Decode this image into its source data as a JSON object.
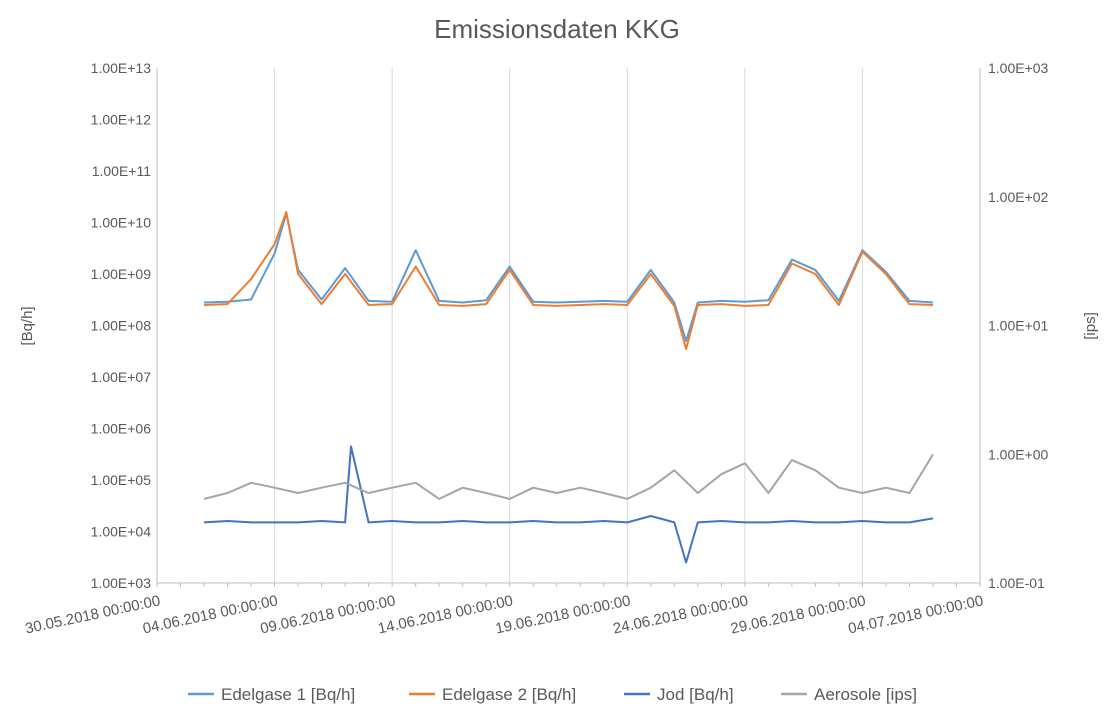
{
  "chart_data": {
    "type": "line",
    "title": "Emissionsdaten KKG",
    "ylabel": "[Bq/h]",
    "y2label": "[ips]",
    "y_scale": "log",
    "y2_scale": "log",
    "ylim": [
      1000,
      10000000000000
    ],
    "y2lim": [
      0.1,
      1000
    ],
    "yticks": [
      "1.00E+03",
      "1.00E+04",
      "1.00E+05",
      "1.00E+06",
      "1.00E+07",
      "1.00E+08",
      "1.00E+09",
      "1.00E+10",
      "1.00E+11",
      "1.00E+12",
      "1.00E+13"
    ],
    "y2ticks": [
      "1.00E-01",
      "1.00E+00",
      "1.00E+01",
      "1.00E+02",
      "1.00E+03"
    ],
    "xlim": [
      "2018-05-30 00:00",
      "2018-07-04 00:00"
    ],
    "xticks": [
      "30.05.2018 00:00:00",
      "04.06.2018 00:00:00",
      "09.06.2018 00:00:00",
      "14.06.2018 00:00:00",
      "19.06.2018 00:00:00",
      "24.06.2018 00:00:00",
      "29.06.2018 00:00:00",
      "04.07.2018 00:00:00"
    ],
    "grid": "vertical",
    "legend": "bottom",
    "colors": {
      "edelgase1": "#5b9bd5",
      "edelgase2": "#ed7d31",
      "jod": "#4472c4",
      "aerosole": "#a5a5a5"
    },
    "series": [
      {
        "name": "Edelgase 1 [Bq/h]",
        "axis": "left",
        "color": "#5b9bd5",
        "x": [
          "2018-06-01",
          "2018-06-02",
          "2018-06-03",
          "2018-06-04",
          "2018-06-04 12:00",
          "2018-06-05",
          "2018-06-06",
          "2018-06-07",
          "2018-06-08",
          "2018-06-09",
          "2018-06-10",
          "2018-06-11",
          "2018-06-12",
          "2018-06-13",
          "2018-06-14",
          "2018-06-15",
          "2018-06-16",
          "2018-06-17",
          "2018-06-18",
          "2018-06-19",
          "2018-06-20",
          "2018-06-21",
          "2018-06-21 12:00",
          "2018-06-22",
          "2018-06-23",
          "2018-06-24",
          "2018-06-25",
          "2018-06-26",
          "2018-06-27",
          "2018-06-28",
          "2018-06-29",
          "2018-06-30",
          "2018-07-01",
          "2018-07-02"
        ],
        "y": [
          280000000,
          290000000,
          320000000,
          2500000000,
          15000000000,
          1200000000,
          320000000,
          1300000000,
          300000000,
          290000000,
          2900000000,
          300000000,
          280000000,
          310000000,
          1400000000,
          290000000,
          280000000,
          290000000,
          300000000,
          290000000,
          1200000000,
          280000000,
          50000000,
          280000000,
          300000000,
          290000000,
          310000000,
          1900000000,
          1200000000,
          300000000,
          2900000000,
          1100000000,
          300000000,
          280000000
        ]
      },
      {
        "name": "Edelgase 2 [Bq/h]",
        "axis": "left",
        "color": "#ed7d31",
        "x": [
          "2018-06-01",
          "2018-06-02",
          "2018-06-03",
          "2018-06-04",
          "2018-06-04 12:00",
          "2018-06-05",
          "2018-06-06",
          "2018-06-07",
          "2018-06-08",
          "2018-06-09",
          "2018-06-10",
          "2018-06-11",
          "2018-06-12",
          "2018-06-13",
          "2018-06-14",
          "2018-06-15",
          "2018-06-16",
          "2018-06-17",
          "2018-06-18",
          "2018-06-19",
          "2018-06-20",
          "2018-06-21",
          "2018-06-21 12:00",
          "2018-06-22",
          "2018-06-23",
          "2018-06-24",
          "2018-06-25",
          "2018-06-26",
          "2018-06-27",
          "2018-06-28",
          "2018-06-29",
          "2018-06-30",
          "2018-07-01",
          "2018-07-02"
        ],
        "y": [
          250000000,
          260000000,
          800000000,
          3800000000,
          16000000000,
          1000000000,
          260000000,
          1000000000,
          250000000,
          260000000,
          1400000000,
          250000000,
          240000000,
          260000000,
          1200000000,
          250000000,
          240000000,
          250000000,
          260000000,
          250000000,
          1000000000,
          240000000,
          35000000,
          250000000,
          260000000,
          240000000,
          250000000,
          1600000000,
          1000000000,
          250000000,
          2700000000,
          1000000000,
          260000000,
          250000000
        ]
      },
      {
        "name": "Jod [Bq/h]",
        "axis": "left",
        "color": "#4472c4",
        "x": [
          "2018-06-01",
          "2018-06-02",
          "2018-06-03",
          "2018-06-04",
          "2018-06-05",
          "2018-06-06",
          "2018-06-07",
          "2018-06-07 06:00",
          "2018-06-08",
          "2018-06-09",
          "2018-06-10",
          "2018-06-11",
          "2018-06-12",
          "2018-06-13",
          "2018-06-14",
          "2018-06-15",
          "2018-06-16",
          "2018-06-17",
          "2018-06-18",
          "2018-06-19",
          "2018-06-20",
          "2018-06-21",
          "2018-06-21 12:00",
          "2018-06-22",
          "2018-06-23",
          "2018-06-24",
          "2018-06-25",
          "2018-06-26",
          "2018-06-27",
          "2018-06-28",
          "2018-06-29",
          "2018-06-30",
          "2018-07-01",
          "2018-07-02"
        ],
        "y": [
          15000,
          16000,
          15000,
          15000,
          15000,
          16000,
          15000,
          450000,
          15000,
          16000,
          15000,
          15000,
          16000,
          15000,
          15000,
          16000,
          15000,
          15000,
          16000,
          15000,
          20000,
          15000,
          2500,
          15000,
          16000,
          15000,
          15000,
          16000,
          15000,
          15000,
          16000,
          15000,
          15000,
          18000
        ]
      },
      {
        "name": "Aerosole [ips]",
        "axis": "right",
        "color": "#a5a5a5",
        "x": [
          "2018-06-01",
          "2018-06-02",
          "2018-06-03",
          "2018-06-04",
          "2018-06-05",
          "2018-06-06",
          "2018-06-07",
          "2018-06-08",
          "2018-06-09",
          "2018-06-10",
          "2018-06-11",
          "2018-06-12",
          "2018-06-13",
          "2018-06-14",
          "2018-06-15",
          "2018-06-16",
          "2018-06-17",
          "2018-06-18",
          "2018-06-19",
          "2018-06-20",
          "2018-06-21",
          "2018-06-22",
          "2018-06-23",
          "2018-06-24",
          "2018-06-25",
          "2018-06-26",
          "2018-06-27",
          "2018-06-28",
          "2018-06-29",
          "2018-06-30",
          "2018-07-01",
          "2018-07-02"
        ],
        "y": [
          0.45,
          0.5,
          0.6,
          0.55,
          0.5,
          0.55,
          0.6,
          0.5,
          0.55,
          0.6,
          0.45,
          0.55,
          0.5,
          0.45,
          0.55,
          0.5,
          0.55,
          0.5,
          0.45,
          0.55,
          0.75,
          0.5,
          0.7,
          0.85,
          0.5,
          0.9,
          0.75,
          0.55,
          0.5,
          0.55,
          0.5,
          1.0
        ]
      }
    ]
  }
}
